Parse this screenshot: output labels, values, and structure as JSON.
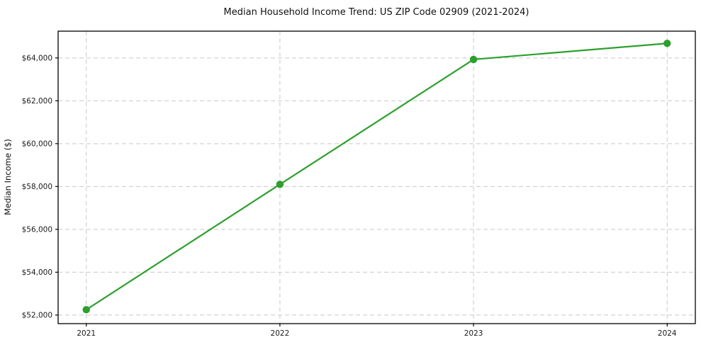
{
  "chart_data": {
    "type": "line",
    "title": "Median Household Income Trend: US ZIP Code 02909 (2021-2024)",
    "xlabel": "",
    "ylabel": "Median Income ($)",
    "categories": [
      "2021",
      "2022",
      "2023",
      "2024"
    ],
    "values": [
      52250,
      58100,
      63930,
      64680
    ],
    "y_ticks": [
      52000,
      54000,
      56000,
      58000,
      60000,
      62000,
      64000
    ],
    "y_tick_labels": [
      "$52,000",
      "$54,000",
      "$56,000",
      "$58,000",
      "$60,000",
      "$62,000",
      "$64,000"
    ],
    "ylim": [
      51600,
      65250
    ],
    "grid": {
      "horizontal": true,
      "vertical": true,
      "style": "dashed",
      "color": "#c9c9c9"
    },
    "legend": "none",
    "line_color": "#2ca02c",
    "marker": "circle",
    "background": "#ffffff"
  }
}
